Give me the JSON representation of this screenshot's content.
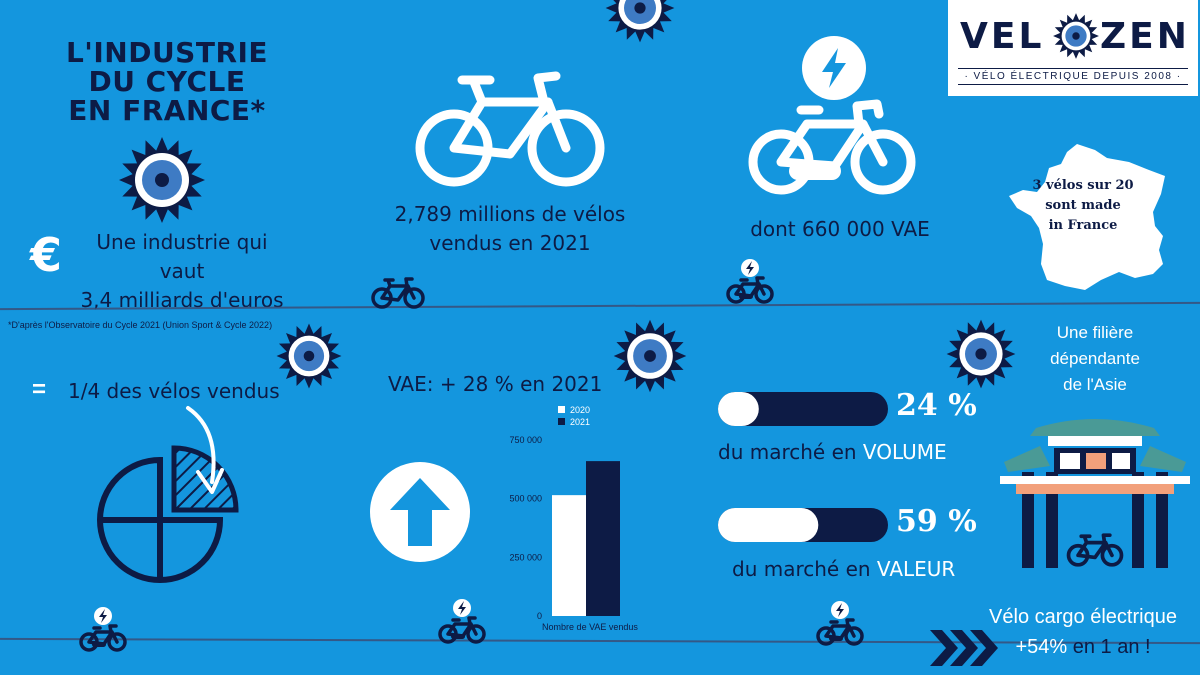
{
  "title": {
    "line1": "L'INDUSTRIE",
    "line2": "DU CYCLE",
    "line3": "EN FRANCE*"
  },
  "logo": {
    "brand_left": "VEL",
    "brand_right": "ZEN",
    "tagline": "· VÉLO ÉLECTRIQUE DEPUIS 2008 ·"
  },
  "industry": {
    "currency_symbol": "€",
    "line1": "Une industrie qui vaut",
    "line2": "3,4 milliards d'euros"
  },
  "sales": {
    "line1": "2,789 millions de vélos",
    "line2": "vendus en 2021"
  },
  "vae": {
    "text": "dont 660 000 VAE"
  },
  "france": {
    "line1": "3 vélos sur 20",
    "line2": "sont made",
    "line3": "in France"
  },
  "footnote": "*D'après l'Observatoire du Cycle 2021 (Union Sport & Cycle 2022)",
  "quarter": {
    "symbol": "=",
    "text": "1/4 des vélos vendus"
  },
  "growth": {
    "text": "VAE: + 28 % en 2021"
  },
  "chart_data": {
    "type": "bar",
    "categories": [
      "Nombre de VAE vendus"
    ],
    "series": [
      {
        "name": "2020",
        "values": [
          515000
        ],
        "color": "#ffffff"
      },
      {
        "name": "2021",
        "values": [
          660000
        ],
        "color": "#0d1b45"
      }
    ],
    "yticks": [
      "750 000",
      "500 000",
      "250 000",
      "0"
    ],
    "ytick_values": [
      750000,
      500000,
      250000,
      0
    ],
    "ylim": [
      0,
      750000
    ],
    "xlabel": "Nombre de VAE vendus",
    "legend_position": "top",
    "grid": false
  },
  "market": {
    "volume": {
      "percent": "24 %",
      "value": 0.24,
      "prefix": "du marché en ",
      "highlight": "VOLUME"
    },
    "valeur": {
      "percent": "59 %",
      "value": 0.59,
      "prefix": "du marché en ",
      "highlight": "VALEUR"
    }
  },
  "asia": {
    "line1": "Une filière",
    "line2": "dépendante",
    "line3": "de l'Asie"
  },
  "cargo": {
    "line1": "Vélo cargo électrique",
    "line2_a": "+54%",
    "line2_b": " en 1 an !"
  },
  "colors": {
    "background": "#1496de",
    "navy": "#0d1b45",
    "white": "#ffffff",
    "sun_blue": "#3e7bc4",
    "pink": "#f2a07b",
    "teal": "#4a9a96"
  },
  "icons": [
    "sun-icon",
    "bicycle-icon",
    "ebike-icon",
    "lightning-icon",
    "france-map-icon",
    "pie-chart-icon",
    "arrow-up-icon",
    "asian-gate-icon",
    "chevrons-right-icon",
    "euro-icon",
    "curved-arrow-icon"
  ]
}
